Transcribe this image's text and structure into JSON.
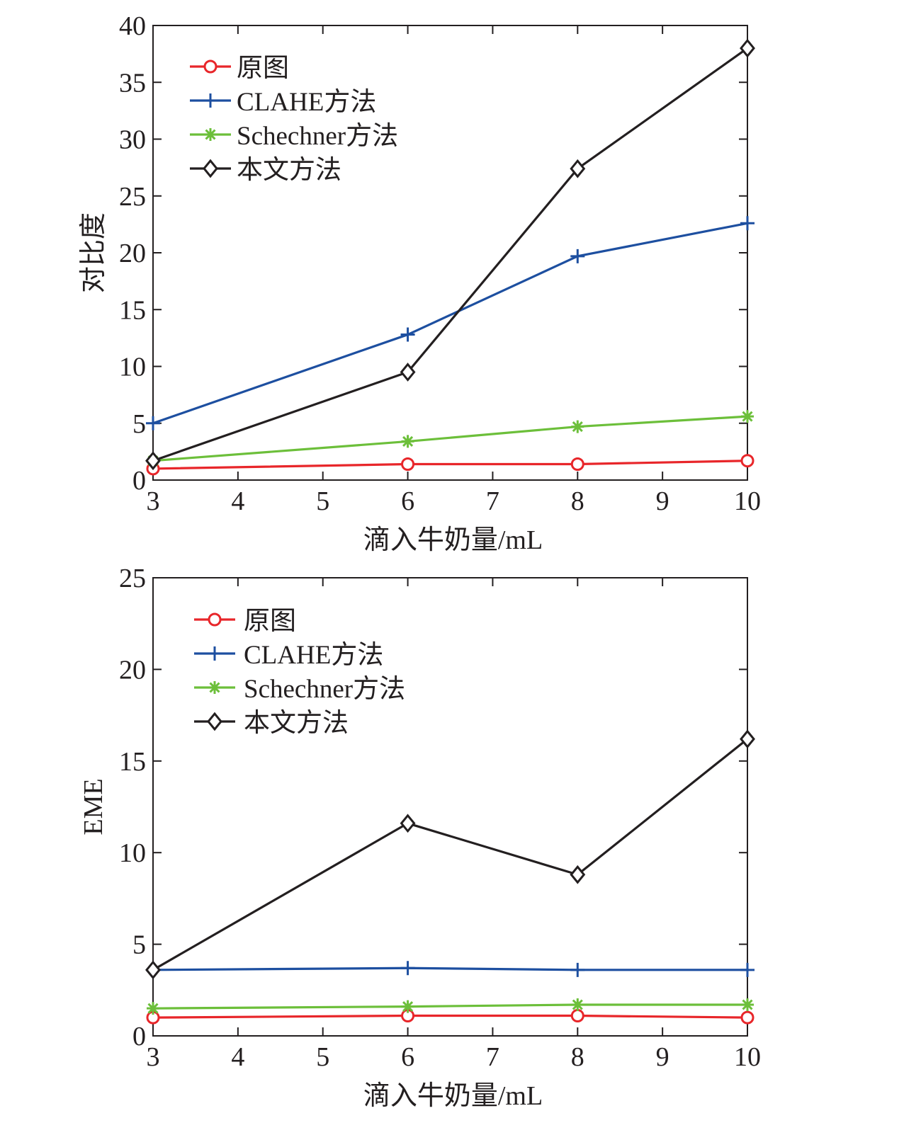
{
  "chart_data": [
    {
      "type": "line",
      "title": "",
      "xlabel": "滴入牛奶量/mL",
      "ylabel": "对比度",
      "xlim": [
        3,
        10
      ],
      "ylim": [
        0,
        40
      ],
      "xticks": [
        3,
        4,
        5,
        6,
        7,
        8,
        9,
        10
      ],
      "yticks": [
        0,
        5,
        10,
        15,
        20,
        25,
        30,
        35,
        40
      ],
      "grid": false,
      "legend_position": "top-left",
      "x": [
        3,
        6,
        8,
        10
      ],
      "series": [
        {
          "name": "原图",
          "color": "#e8262a",
          "marker": "circle",
          "values": [
            1.0,
            1.4,
            1.4,
            1.7
          ]
        },
        {
          "name": "CLAHE方法",
          "color": "#1d4fa0",
          "marker": "plus",
          "values": [
            5.0,
            12.8,
            19.7,
            22.6
          ]
        },
        {
          "name": "Schechner方法",
          "color": "#6cbf3a",
          "marker": "asterisk",
          "values": [
            1.7,
            3.4,
            4.7,
            5.6
          ]
        },
        {
          "name": "本文方法",
          "color": "#231f20",
          "marker": "diamond",
          "values": [
            1.7,
            9.5,
            27.4,
            38.0
          ]
        }
      ]
    },
    {
      "type": "line",
      "title": "",
      "xlabel": "滴入牛奶量/mL",
      "ylabel": "EME",
      "xlim": [
        3,
        10
      ],
      "ylim": [
        0,
        25
      ],
      "xticks": [
        3,
        4,
        5,
        6,
        7,
        8,
        9,
        10
      ],
      "yticks": [
        0,
        5,
        10,
        15,
        20,
        25
      ],
      "grid": false,
      "legend_position": "top-left",
      "x": [
        3,
        6,
        8,
        10
      ],
      "series": [
        {
          "name": "原图",
          "color": "#e8262a",
          "marker": "circle",
          "values": [
            1.0,
            1.1,
            1.1,
            1.0
          ]
        },
        {
          "name": "CLAHE方法",
          "color": "#1d4fa0",
          "marker": "plus",
          "values": [
            3.6,
            3.7,
            3.6,
            3.6
          ]
        },
        {
          "name": "Schechner方法",
          "color": "#6cbf3a",
          "marker": "asterisk",
          "values": [
            1.5,
            1.6,
            1.7,
            1.7
          ]
        },
        {
          "name": "本文方法",
          "color": "#231f20",
          "marker": "diamond",
          "values": [
            3.6,
            11.6,
            8.8,
            16.2
          ]
        }
      ]
    }
  ]
}
